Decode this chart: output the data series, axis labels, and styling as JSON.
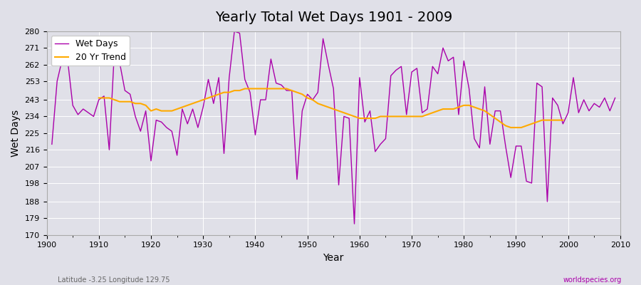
{
  "title": "Yearly Total Wet Days 1901 - 2009",
  "xlabel": "Year",
  "ylabel": "Wet Days",
  "footnote_left": "Latitude -3.25 Longitude 129.75",
  "footnote_right": "worldspecies.org",
  "ylim": [
    170,
    280
  ],
  "yticks": [
    170,
    179,
    188,
    198,
    207,
    216,
    225,
    234,
    243,
    253,
    262,
    271,
    280
  ],
  "bg_color": "#e0e0e8",
  "line_color_wet": "#aa00aa",
  "line_color_trend": "#ffaa00",
  "legend_wet": "Wet Days",
  "legend_trend": "20 Yr Trend",
  "years": [
    1901,
    1902,
    1903,
    1904,
    1905,
    1906,
    1907,
    1908,
    1909,
    1910,
    1911,
    1912,
    1913,
    1914,
    1915,
    1916,
    1917,
    1918,
    1919,
    1920,
    1921,
    1922,
    1923,
    1924,
    1925,
    1926,
    1927,
    1928,
    1929,
    1930,
    1931,
    1932,
    1933,
    1934,
    1935,
    1936,
    1937,
    1938,
    1939,
    1940,
    1941,
    1942,
    1943,
    1944,
    1945,
    1946,
    1947,
    1948,
    1949,
    1950,
    1951,
    1952,
    1953,
    1954,
    1955,
    1956,
    1957,
    1958,
    1959,
    1960,
    1961,
    1962,
    1963,
    1964,
    1965,
    1966,
    1967,
    1968,
    1969,
    1970,
    1971,
    1972,
    1973,
    1974,
    1975,
    1976,
    1977,
    1978,
    1979,
    1980,
    1981,
    1982,
    1983,
    1984,
    1985,
    1986,
    1987,
    1988,
    1989,
    1990,
    1991,
    1992,
    1993,
    1994,
    1995,
    1996,
    1997,
    1998,
    1999,
    2000,
    2001,
    2002,
    2003,
    2004,
    2005,
    2006,
    2007,
    2008,
    2009
  ],
  "wet_days": [
    219,
    253,
    265,
    265,
    240,
    235,
    238,
    236,
    234,
    243,
    245,
    216,
    270,
    263,
    248,
    246,
    234,
    226,
    237,
    210,
    232,
    231,
    228,
    226,
    213,
    238,
    230,
    238,
    228,
    239,
    254,
    241,
    255,
    214,
    255,
    280,
    279,
    254,
    247,
    224,
    243,
    243,
    265,
    252,
    251,
    248,
    248,
    200,
    237,
    246,
    243,
    247,
    276,
    262,
    249,
    197,
    234,
    233,
    176,
    255,
    231,
    237,
    215,
    219,
    222,
    256,
    259,
    261,
    235,
    258,
    260,
    236,
    238,
    261,
    257,
    271,
    264,
    266,
    235,
    264,
    249,
    222,
    217,
    250,
    219,
    237,
    237,
    218,
    201,
    218,
    218,
    199,
    198,
    252,
    250,
    188,
    244,
    240,
    230,
    236,
    255,
    236,
    243,
    237,
    241,
    239,
    244,
    237,
    244
  ],
  "trend_years": [
    1910,
    1911,
    1912,
    1913,
    1914,
    1915,
    1916,
    1917,
    1918,
    1919,
    1920,
    1921,
    1922,
    1923,
    1924,
    1925,
    1926,
    1927,
    1928,
    1929,
    1930,
    1931,
    1932,
    1933,
    1934,
    1935,
    1936,
    1937,
    1938,
    1939,
    1940,
    1941,
    1942,
    1943,
    1944,
    1945,
    1946,
    1947,
    1948,
    1949,
    1950,
    1951,
    1952,
    1953,
    1954,
    1955,
    1956,
    1957,
    1958,
    1959,
    1960,
    1961,
    1962,
    1963,
    1964,
    1965,
    1966,
    1967,
    1968,
    1969,
    1970,
    1971,
    1972,
    1973,
    1974,
    1975,
    1976,
    1977,
    1978,
    1979,
    1980,
    1981,
    1982,
    1983,
    1984,
    1985,
    1986,
    1987,
    1988,
    1989,
    1990,
    1991,
    1992,
    1993,
    1994,
    1995,
    1996,
    1997,
    1998,
    1999
  ],
  "trend_values": [
    244,
    244,
    244,
    243,
    242,
    242,
    242,
    241,
    241,
    240,
    237,
    238,
    237,
    237,
    237,
    238,
    239,
    240,
    241,
    242,
    243,
    244,
    245,
    246,
    247,
    247,
    248,
    248,
    249,
    249,
    249,
    249,
    249,
    249,
    249,
    249,
    249,
    248,
    247,
    246,
    244,
    243,
    241,
    240,
    239,
    238,
    237,
    236,
    235,
    234,
    233,
    233,
    233,
    233,
    234,
    234,
    234,
    234,
    234,
    234,
    234,
    234,
    234,
    235,
    236,
    237,
    238,
    238,
    238,
    239,
    240,
    240,
    239,
    238,
    237,
    235,
    233,
    231,
    229,
    228,
    228,
    228,
    229,
    230,
    231,
    232,
    232,
    232,
    232,
    232
  ]
}
